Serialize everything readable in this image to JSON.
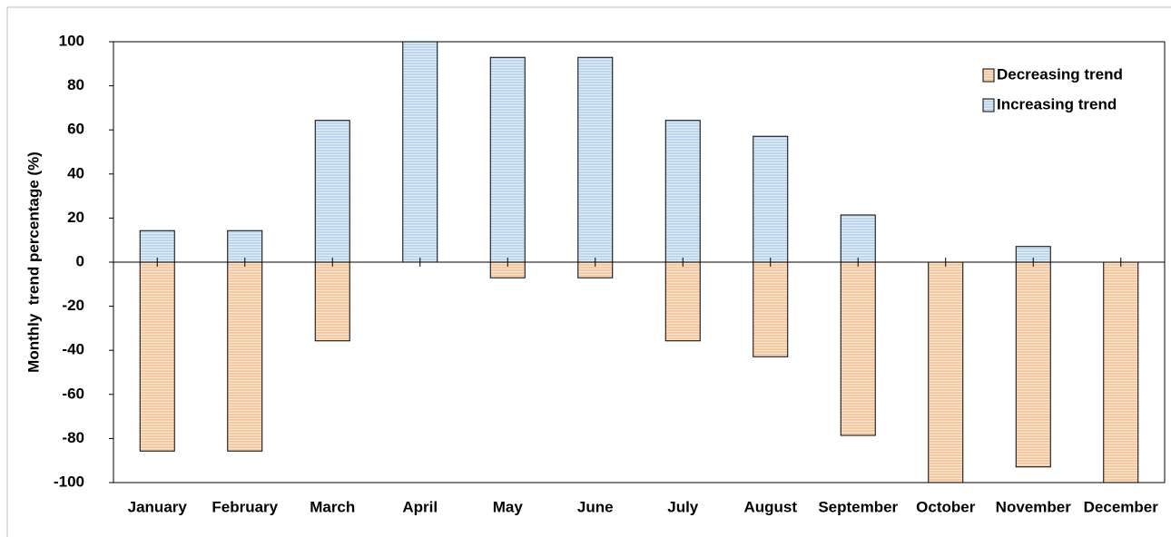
{
  "chart_data": {
    "type": "bar",
    "y_label": "Monthly  trend percentage (%)",
    "categories": [
      "January",
      "February",
      "March",
      "April",
      "May",
      "June",
      "July",
      "August",
      "September",
      "October",
      "November",
      "December"
    ],
    "series": [
      {
        "name": "Decreasing trend",
        "color": "#f8c9a0",
        "values": [
          -85.7,
          -85.7,
          -35.7,
          0,
          -7.1,
          -7.1,
          -35.7,
          -42.9,
          -78.6,
          -100,
          -92.9,
          -100
        ]
      },
      {
        "name": "Increasing trend",
        "color": "#bdd7ee",
        "values": [
          14.3,
          14.3,
          64.3,
          100,
          92.9,
          92.9,
          64.3,
          57.1,
          21.4,
          0,
          7.1,
          0
        ]
      }
    ],
    "ylim": [
      -100,
      100
    ],
    "yticks": [
      -100,
      -80,
      -60,
      -40,
      -20,
      0,
      20,
      40,
      60,
      80,
      100
    ],
    "grid": false,
    "legend": "upper right"
  }
}
